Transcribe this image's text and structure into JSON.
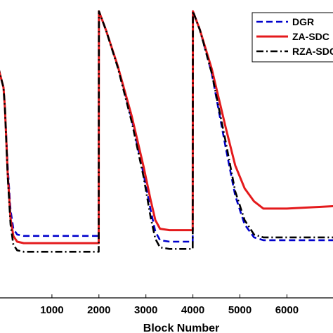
{
  "chart_data": {
    "type": "line",
    "xlabel": "Block Number",
    "ylabel": "",
    "title": "",
    "xlim": [
      -150,
      7200
    ],
    "x_ticks": [
      1000,
      2000,
      3000,
      4000,
      5000,
      6000
    ],
    "grid": false,
    "legend_position": "top-right",
    "series": [
      {
        "name": "DGR",
        "color": "#0000cc",
        "style": "dashed",
        "points": [
          [
            -150,
            14.5
          ],
          [
            -30,
            13.0
          ],
          [
            0,
            11.6
          ],
          [
            60,
            7.5
          ],
          [
            120,
            4.5
          ],
          [
            180,
            3.2
          ],
          [
            260,
            2.8
          ],
          [
            400,
            2.7
          ],
          [
            1000,
            2.7
          ],
          [
            1995,
            2.7
          ],
          [
            2000,
            18.3
          ],
          [
            2150,
            17.0
          ],
          [
            2400,
            14.5
          ],
          [
            2700,
            10.8
          ],
          [
            2950,
            7.0
          ],
          [
            3100,
            4.5
          ],
          [
            3200,
            3.0
          ],
          [
            3300,
            2.4
          ],
          [
            3500,
            2.3
          ],
          [
            3995,
            2.3
          ],
          [
            4000,
            18.3
          ],
          [
            4150,
            17.0
          ],
          [
            4400,
            14.0
          ],
          [
            4700,
            8.8
          ],
          [
            4900,
            5.5
          ],
          [
            5100,
            3.5
          ],
          [
            5300,
            2.6
          ],
          [
            5500,
            2.4
          ],
          [
            6000,
            2.4
          ],
          [
            7200,
            2.4
          ]
        ]
      },
      {
        "name": "ZA-SDC",
        "color": "#e41a1c",
        "style": "solid",
        "points": [
          [
            -150,
            14.5
          ],
          [
            -30,
            13.0
          ],
          [
            0,
            11.6
          ],
          [
            60,
            7.0
          ],
          [
            120,
            3.9
          ],
          [
            180,
            2.7
          ],
          [
            260,
            2.3
          ],
          [
            400,
            2.2
          ],
          [
            1000,
            2.2
          ],
          [
            1995,
            2.2
          ],
          [
            2000,
            18.3
          ],
          [
            2150,
            17.0
          ],
          [
            2400,
            14.5
          ],
          [
            2700,
            11.0
          ],
          [
            2950,
            7.5
          ],
          [
            3100,
            5.2
          ],
          [
            3200,
            3.8
          ],
          [
            3300,
            3.2
          ],
          [
            3500,
            3.1
          ],
          [
            3995,
            3.1
          ],
          [
            4000,
            18.3
          ],
          [
            4150,
            17.0
          ],
          [
            4400,
            14.3
          ],
          [
            4700,
            10.2
          ],
          [
            4900,
            7.6
          ],
          [
            5100,
            6.0
          ],
          [
            5300,
            5.1
          ],
          [
            5500,
            4.6
          ],
          [
            6000,
            4.6
          ],
          [
            7200,
            4.8
          ]
        ]
      },
      {
        "name": "RZA-SDC",
        "color": "#000000",
        "style": "dashdot",
        "points": [
          [
            -150,
            14.5
          ],
          [
            -30,
            13.0
          ],
          [
            0,
            11.6
          ],
          [
            60,
            6.8
          ],
          [
            120,
            3.5
          ],
          [
            180,
            2.1
          ],
          [
            260,
            1.7
          ],
          [
            400,
            1.6
          ],
          [
            1000,
            1.6
          ],
          [
            1995,
            1.6
          ],
          [
            2000,
            18.3
          ],
          [
            2150,
            17.0
          ],
          [
            2400,
            14.4
          ],
          [
            2700,
            10.6
          ],
          [
            2950,
            6.8
          ],
          [
            3100,
            4.0
          ],
          [
            3200,
            2.5
          ],
          [
            3300,
            1.9
          ],
          [
            3500,
            1.8
          ],
          [
            3995,
            1.8
          ],
          [
            4000,
            18.3
          ],
          [
            4150,
            17.0
          ],
          [
            4400,
            14.0
          ],
          [
            4700,
            9.2
          ],
          [
            4900,
            5.8
          ],
          [
            5100,
            3.8
          ],
          [
            5300,
            2.8
          ],
          [
            5500,
            2.6
          ],
          [
            6000,
            2.6
          ],
          [
            7200,
            2.6
          ]
        ]
      }
    ]
  }
}
